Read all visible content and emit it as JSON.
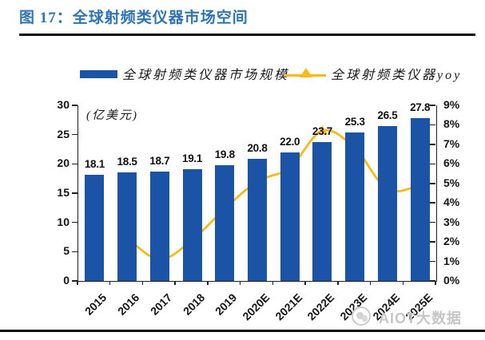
{
  "title": "图 17：全球射频类仪器市场空间",
  "legend": {
    "bar_label": "全球射频类仪器市场规模",
    "line_label": "全球射频类仪器yoy"
  },
  "watermark": {
    "text": "AIOT大数据"
  },
  "colors": {
    "bar": "#1B54A6",
    "line": "#F9BA16",
    "title": "#2E74B5",
    "axis": "#1f1f1f",
    "watermark": "#c6c6c6"
  },
  "chart_data": {
    "type": "bar",
    "title": "全球射频类仪器市场空间",
    "categories": [
      "2015",
      "2016",
      "2017",
      "2018",
      "2019",
      "2020E",
      "2021E",
      "2022E",
      "2023E",
      "2024E",
      "2025E"
    ],
    "series": [
      {
        "name": "全球射频类仪器市场规模",
        "type": "bar",
        "axis": "left",
        "values": [
          18.1,
          18.5,
          18.7,
          19.1,
          19.8,
          20.8,
          22.0,
          23.7,
          25.3,
          26.5,
          27.8
        ],
        "labels": [
          "18.1",
          "18.5",
          "18.7",
          "19.1",
          "19.8",
          "20.8",
          "22.0",
          "23.7",
          "25.3",
          "26.5",
          "27.8"
        ]
      },
      {
        "name": "全球射频类仪器yoy",
        "type": "line",
        "axis": "right",
        "values_pct": [
          null,
          2.2,
          1.1,
          2.1,
          3.7,
          5.1,
          5.8,
          7.7,
          6.8,
          4.7,
          4.9
        ]
      }
    ],
    "left_axis": {
      "label": "(亿美元)",
      "min": 0,
      "max": 30,
      "step": 5,
      "ticks": [
        "0",
        "5",
        "10",
        "15",
        "20",
        "25",
        "30"
      ]
    },
    "right_axis": {
      "min": 0,
      "max": 9,
      "step": 1,
      "ticks": [
        "0%",
        "1%",
        "2%",
        "3%",
        "4%",
        "5%",
        "6%",
        "7%",
        "8%",
        "9%"
      ]
    },
    "grid": false,
    "legend_position": "top"
  }
}
